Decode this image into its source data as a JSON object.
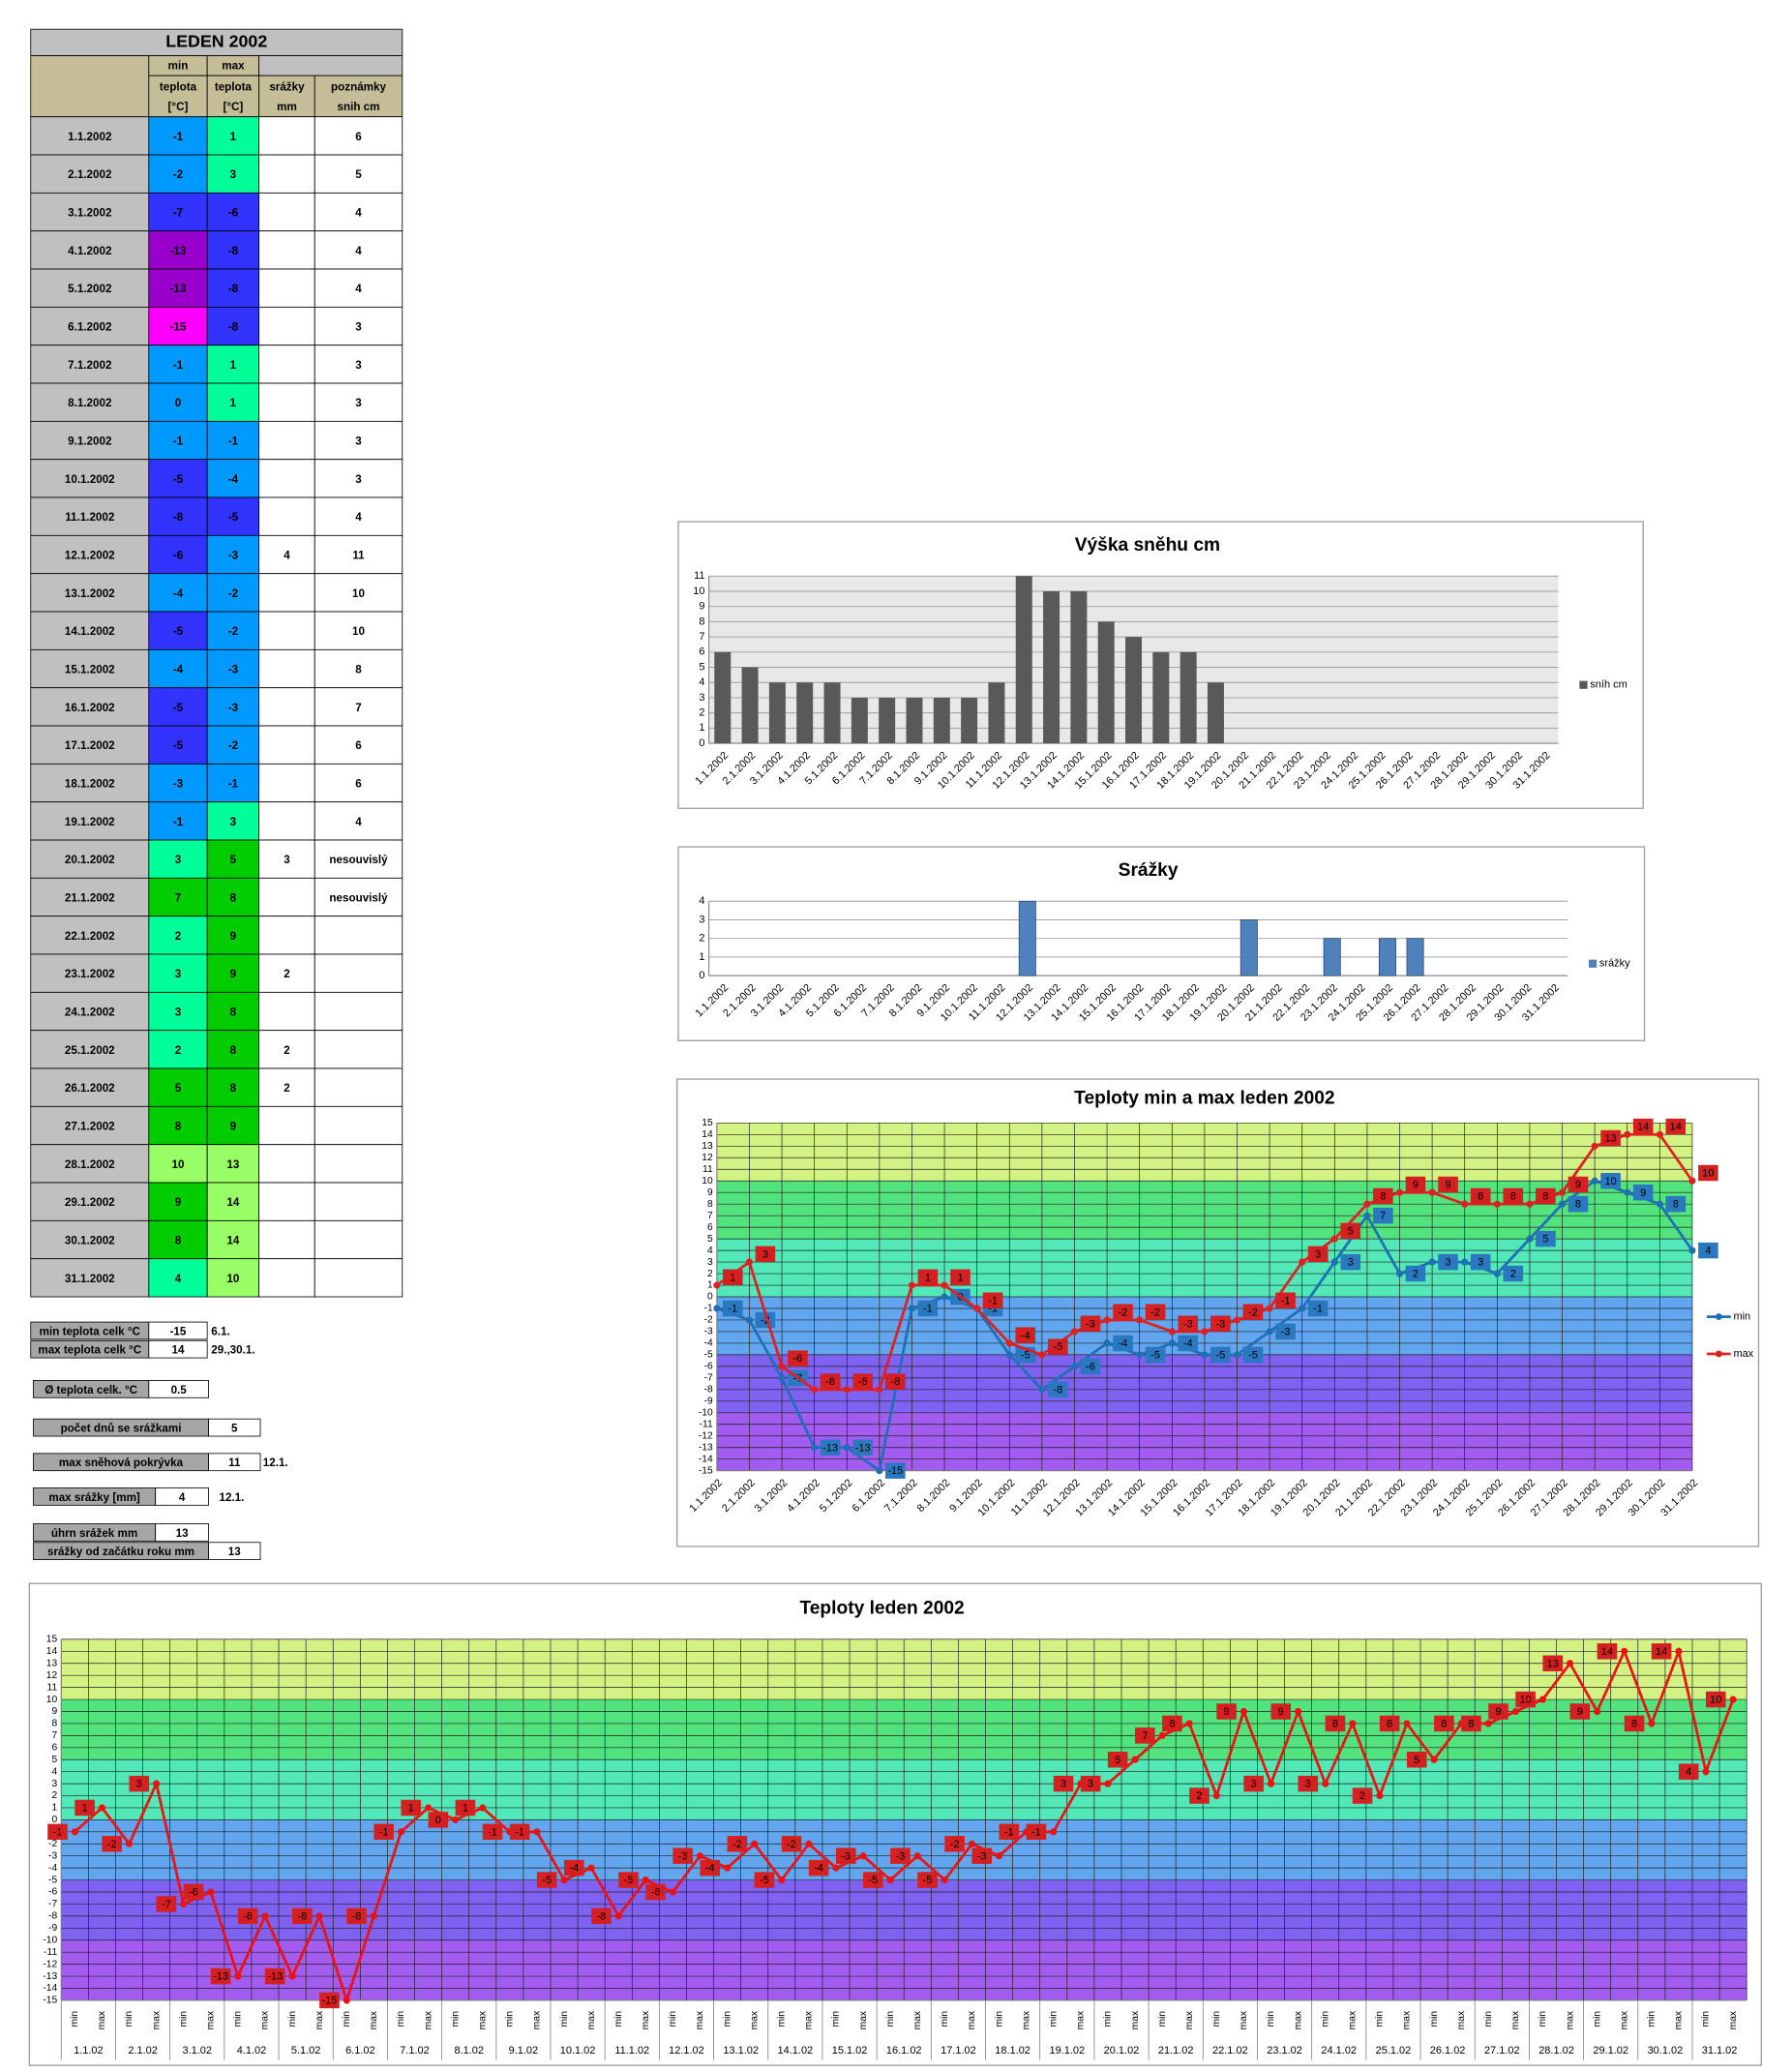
{
  "table": {
    "title": "LEDEN 2002",
    "header": {
      "min": "min",
      "max": "max",
      "teplota": "teplota",
      "unit": "[°C]",
      "srazky": "srážky",
      "mm": "mm",
      "poznamky": "poznámky",
      "snih": "snih cm"
    },
    "rows": [
      [
        "1.1.2002",
        -1,
        1,
        null,
        6
      ],
      [
        "2.1.2002",
        -2,
        3,
        null,
        5
      ],
      [
        "3.1.2002",
        -7,
        -6,
        null,
        4
      ],
      [
        "4.1.2002",
        -13,
        -8,
        null,
        4
      ],
      [
        "5.1.2002",
        -13,
        -8,
        null,
        4
      ],
      [
        "6.1.2002",
        -15,
        -8,
        null,
        3
      ],
      [
        "7.1.2002",
        -1,
        1,
        null,
        3
      ],
      [
        "8.1.2002",
        0,
        1,
        null,
        3
      ],
      [
        "9.1.2002",
        -1,
        -1,
        null,
        3
      ],
      [
        "10.1.2002",
        -5,
        -4,
        null,
        3
      ],
      [
        "11.1.2002",
        -8,
        -5,
        null,
        4
      ],
      [
        "12.1.2002",
        -6,
        -3,
        4,
        11
      ],
      [
        "13.1.2002",
        -4,
        -2,
        null,
        10
      ],
      [
        "14.1.2002",
        -5,
        -2,
        null,
        10
      ],
      [
        "15.1.2002",
        -4,
        -3,
        null,
        8
      ],
      [
        "16.1.2002",
        -5,
        -3,
        null,
        7
      ],
      [
        "17.1.2002",
        -5,
        -2,
        null,
        6
      ],
      [
        "18.1.2002",
        -3,
        -1,
        null,
        6
      ],
      [
        "19.1.2002",
        -1,
        3,
        null,
        4
      ],
      [
        "20.1.2002",
        3,
        5,
        3,
        "nesouvislý"
      ],
      [
        "21.1.2002",
        7,
        8,
        null,
        "nesouvislý"
      ],
      [
        "22.1.2002",
        2,
        9,
        null,
        null
      ],
      [
        "23.1.2002",
        3,
        9,
        2,
        null
      ],
      [
        "24.1.2002",
        3,
        8,
        null,
        null
      ],
      [
        "25.1.2002",
        2,
        8,
        2,
        null
      ],
      [
        "26.1.2002",
        5,
        8,
        2,
        null
      ],
      [
        "27.1.2002",
        8,
        9,
        null,
        null
      ],
      [
        "28.1.2002",
        10,
        13,
        null,
        null
      ],
      [
        "29.1.2002",
        9,
        14,
        null,
        null
      ],
      [
        "30.1.2002",
        8,
        14,
        null,
        null
      ],
      [
        "31.1.2002",
        4,
        10,
        null,
        null
      ]
    ],
    "color_scale": [
      {
        "max": -14,
        "color": "#ff00ff"
      },
      {
        "max": -9,
        "color": "#9900cc"
      },
      {
        "max": -5,
        "color": "#3333ff"
      },
      {
        "max": 0,
        "color": "#0099ff"
      },
      {
        "max": 4,
        "color": "#00ff99"
      },
      {
        "max": 9,
        "color": "#00cc00"
      },
      {
        "max": 15,
        "color": "#99ff66"
      }
    ]
  },
  "summary": [
    {
      "label": "min teplota celk °C",
      "value": -15,
      "note": "6.1."
    },
    {
      "label": "max teplota celk °C",
      "value": 14,
      "note": "29.,30.1."
    },
    {
      "label": "Ø teplota celk. °C",
      "value": 0.5
    },
    {
      "label": "počet dnů se srážkami",
      "value": 5
    },
    {
      "label": "max sněhová pokrývka",
      "value": 11,
      "note": "12.1."
    },
    {
      "label": "max srážky [mm]",
      "value": 4,
      "note": "12.1."
    },
    {
      "label": "úhrn srážek  mm",
      "value": 13
    },
    {
      "label": "srážky od začátku roku mm",
      "value": 13
    }
  ],
  "chart_data": [
    {
      "type": "bar",
      "title": "Výška sněhu cm",
      "categories": [
        "1.1.2002",
        "2.1.2002",
        "3.1.2002",
        "4.1.2002",
        "5.1.2002",
        "6.1.2002",
        "7.1.2002",
        "8.1.2002",
        "9.1.2002",
        "10.1.2002",
        "11.1.2002",
        "12.1.2002",
        "13.1.2002",
        "14.1.2002",
        "15.1.2002",
        "16.1.2002",
        "17.1.2002",
        "18.1.2002",
        "19.1.2002",
        "20.1.2002",
        "21.1.2002",
        "22.1.2002",
        "23.1.2002",
        "24.1.2002",
        "25.1.2002",
        "26.1.2002",
        "27.1.2002",
        "28.1.2002",
        "29.1.2002",
        "30.1.2002",
        "31.1.2002"
      ],
      "series": [
        {
          "name": "sníh cm",
          "color": "#595959",
          "values": [
            6,
            5,
            4,
            4,
            4,
            3,
            3,
            3,
            3,
            3,
            4,
            11,
            10,
            10,
            8,
            7,
            6,
            6,
            4,
            null,
            null,
            null,
            null,
            null,
            null,
            null,
            null,
            null,
            null,
            null,
            null
          ]
        }
      ],
      "ylim": [
        0,
        11
      ],
      "yticks": [
        0,
        1,
        2,
        3,
        4,
        5,
        6,
        7,
        8,
        9,
        10,
        11
      ],
      "grid": true,
      "legend": "right"
    },
    {
      "type": "bar",
      "title": "Srážky",
      "categories": [
        "1.1.2002",
        "2.1.2002",
        "3.1.2002",
        "4.1.2002",
        "5.1.2002",
        "6.1.2002",
        "7.1.2002",
        "8.1.2002",
        "9.1.2002",
        "10.1.2002",
        "11.1.2002",
        "12.1.2002",
        "13.1.2002",
        "14.1.2002",
        "15.1.2002",
        "16.1.2002",
        "17.1.2002",
        "18.1.2002",
        "19.1.2002",
        "20.1.2002",
        "21.1.2002",
        "22.1.2002",
        "23.1.2002",
        "24.1.2002",
        "25.1.2002",
        "26.1.2002",
        "27.1.2002",
        "28.1.2002",
        "29.1.2002",
        "30.1.2002",
        "31.1.2002"
      ],
      "series": [
        {
          "name": "srážky",
          "color": "#4f81bd",
          "values": [
            null,
            null,
            null,
            null,
            null,
            null,
            null,
            null,
            null,
            null,
            null,
            4,
            null,
            null,
            null,
            null,
            null,
            null,
            null,
            3,
            null,
            null,
            2,
            null,
            2,
            2,
            null,
            null,
            null,
            null,
            null
          ]
        }
      ],
      "ylim": [
        0,
        4
      ],
      "yticks": [
        0,
        1,
        2,
        3,
        4
      ],
      "grid": true,
      "legend": "right"
    },
    {
      "type": "line",
      "title": "Teploty min a max leden 2002",
      "categories": [
        "1.1.2002",
        "2.1.2002",
        "3.1.2002",
        "4.1.2002",
        "5.1.2002",
        "6.1.2002",
        "7.1.2002",
        "8.1.2002",
        "9.1.2002",
        "10.1.2002",
        "11.1.2002",
        "12.1.2002",
        "13.1.2002",
        "14.1.2002",
        "15.1.2002",
        "16.1.2002",
        "17.1.2002",
        "18.1.2002",
        "19.1.2002",
        "20.1.2002",
        "21.1.2002",
        "22.1.2002",
        "23.1.2002",
        "24.1.2002",
        "25.1.2002",
        "26.1.2002",
        "27.1.2002",
        "28.1.2002",
        "29.1.2002",
        "30.1.2002",
        "31.1.2002"
      ],
      "series": [
        {
          "name": "min",
          "color": "#1f6fb5",
          "values": [
            -1,
            -2,
            -7,
            -13,
            -13,
            -15,
            -1,
            0,
            -1,
            -5,
            -8,
            -6,
            -4,
            -5,
            -4,
            -5,
            -5,
            -3,
            -1,
            3,
            7,
            2,
            3,
            3,
            2,
            5,
            8,
            10,
            9,
            8,
            4
          ]
        },
        {
          "name": "max",
          "color": "#e02020",
          "values": [
            1,
            3,
            -6,
            -8,
            -8,
            -8,
            1,
            1,
            -1,
            -4,
            -5,
            -3,
            -2,
            -2,
            -3,
            -3,
            -2,
            -1,
            3,
            5,
            8,
            9,
            9,
            8,
            8,
            8,
            9,
            13,
            14,
            14,
            10
          ]
        }
      ],
      "ylim": [
        -15,
        15
      ],
      "yticks": [
        -15,
        -14,
        -13,
        -12,
        -11,
        -10,
        -9,
        -8,
        -7,
        -6,
        -5,
        -4,
        -3,
        -2,
        -1,
        0,
        1,
        2,
        3,
        4,
        5,
        6,
        7,
        8,
        9,
        10,
        11,
        12,
        13,
        14,
        15
      ],
      "grid": true,
      "legend": "right",
      "data_labels": true,
      "bands": [
        {
          "from": -15,
          "to": -10,
          "color": "#a25cf0"
        },
        {
          "from": -10,
          "to": -5,
          "color": "#7f62f2"
        },
        {
          "from": -5,
          "to": 0,
          "color": "#62a6f0"
        },
        {
          "from": 0,
          "to": 5,
          "color": "#52e8b8"
        },
        {
          "from": 5,
          "to": 10,
          "color": "#52e27e"
        },
        {
          "from": 10,
          "to": 15,
          "color": "#d2f284"
        }
      ]
    },
    {
      "type": "line",
      "title": "Teploty leden 2002",
      "categories": [
        "min",
        "max",
        "min",
        "max",
        "min",
        "max",
        "min",
        "max",
        "min",
        "max",
        "min",
        "max",
        "min",
        "max",
        "min",
        "max",
        "min",
        "max",
        "min",
        "max",
        "min",
        "max",
        "min",
        "max",
        "min",
        "max",
        "min",
        "max",
        "min",
        "max",
        "min",
        "max",
        "min",
        "max",
        "min",
        "max",
        "min",
        "max",
        "min",
        "max",
        "min",
        "max",
        "min",
        "max",
        "min",
        "max",
        "min",
        "max",
        "min",
        "max",
        "min",
        "max",
        "min",
        "max",
        "min",
        "max",
        "min",
        "max",
        "min",
        "max",
        "min",
        "max"
      ],
      "groups": [
        "1.1.02",
        "2.1.02",
        "3.1.02",
        "4.1.02",
        "5.1.02",
        "6.1.02",
        "7.1.02",
        "8.1.02",
        "9.1.02",
        "10.1.02",
        "11.1.02",
        "12.1.02",
        "13.1.02",
        "14.1.02",
        "15.1.02",
        "16.1.02",
        "17.1.02",
        "18.1.02",
        "19.1.02",
        "20.1.02",
        "21.1.02",
        "22.1.02",
        "23.1.02",
        "24.1.02",
        "25.1.02",
        "26.1.02",
        "27.1.02",
        "28.1.02",
        "29.1.02",
        "30.1.02",
        "31.1.02"
      ],
      "series": [
        {
          "color": "#ee1111",
          "values": [
            -1,
            1,
            -2,
            3,
            -7,
            -6,
            -13,
            -8,
            -13,
            -8,
            -15,
            -8,
            -1,
            1,
            0,
            1,
            -1,
            -1,
            -5,
            -4,
            -8,
            -5,
            -6,
            -3,
            -4,
            -2,
            -5,
            -2,
            -4,
            -3,
            -5,
            -3,
            -5,
            -2,
            -3,
            -1,
            -1,
            3,
            3,
            5,
            7,
            8,
            2,
            9,
            3,
            9,
            3,
            8,
            2,
            8,
            5,
            8,
            8,
            9,
            10,
            13,
            9,
            14,
            8,
            14,
            4,
            10
          ]
        }
      ],
      "ylim": [
        -15,
        15
      ],
      "yticks": [
        -15,
        -14,
        -13,
        -12,
        -11,
        -10,
        -9,
        -8,
        -7,
        -6,
        -5,
        -4,
        -3,
        -2,
        -1,
        0,
        1,
        2,
        3,
        4,
        5,
        6,
        7,
        8,
        9,
        10,
        11,
        12,
        13,
        14,
        15
      ],
      "grid": true,
      "data_labels": true,
      "bands": [
        {
          "from": -15,
          "to": -10,
          "color": "#a25cf0"
        },
        {
          "from": -10,
          "to": -5,
          "color": "#7f62f2"
        },
        {
          "from": -5,
          "to": 0,
          "color": "#62a6f0"
        },
        {
          "from": 0,
          "to": 5,
          "color": "#52e8b8"
        },
        {
          "from": 5,
          "to": 10,
          "color": "#52e27e"
        },
        {
          "from": 10,
          "to": 15,
          "color": "#d2f284"
        }
      ]
    }
  ]
}
